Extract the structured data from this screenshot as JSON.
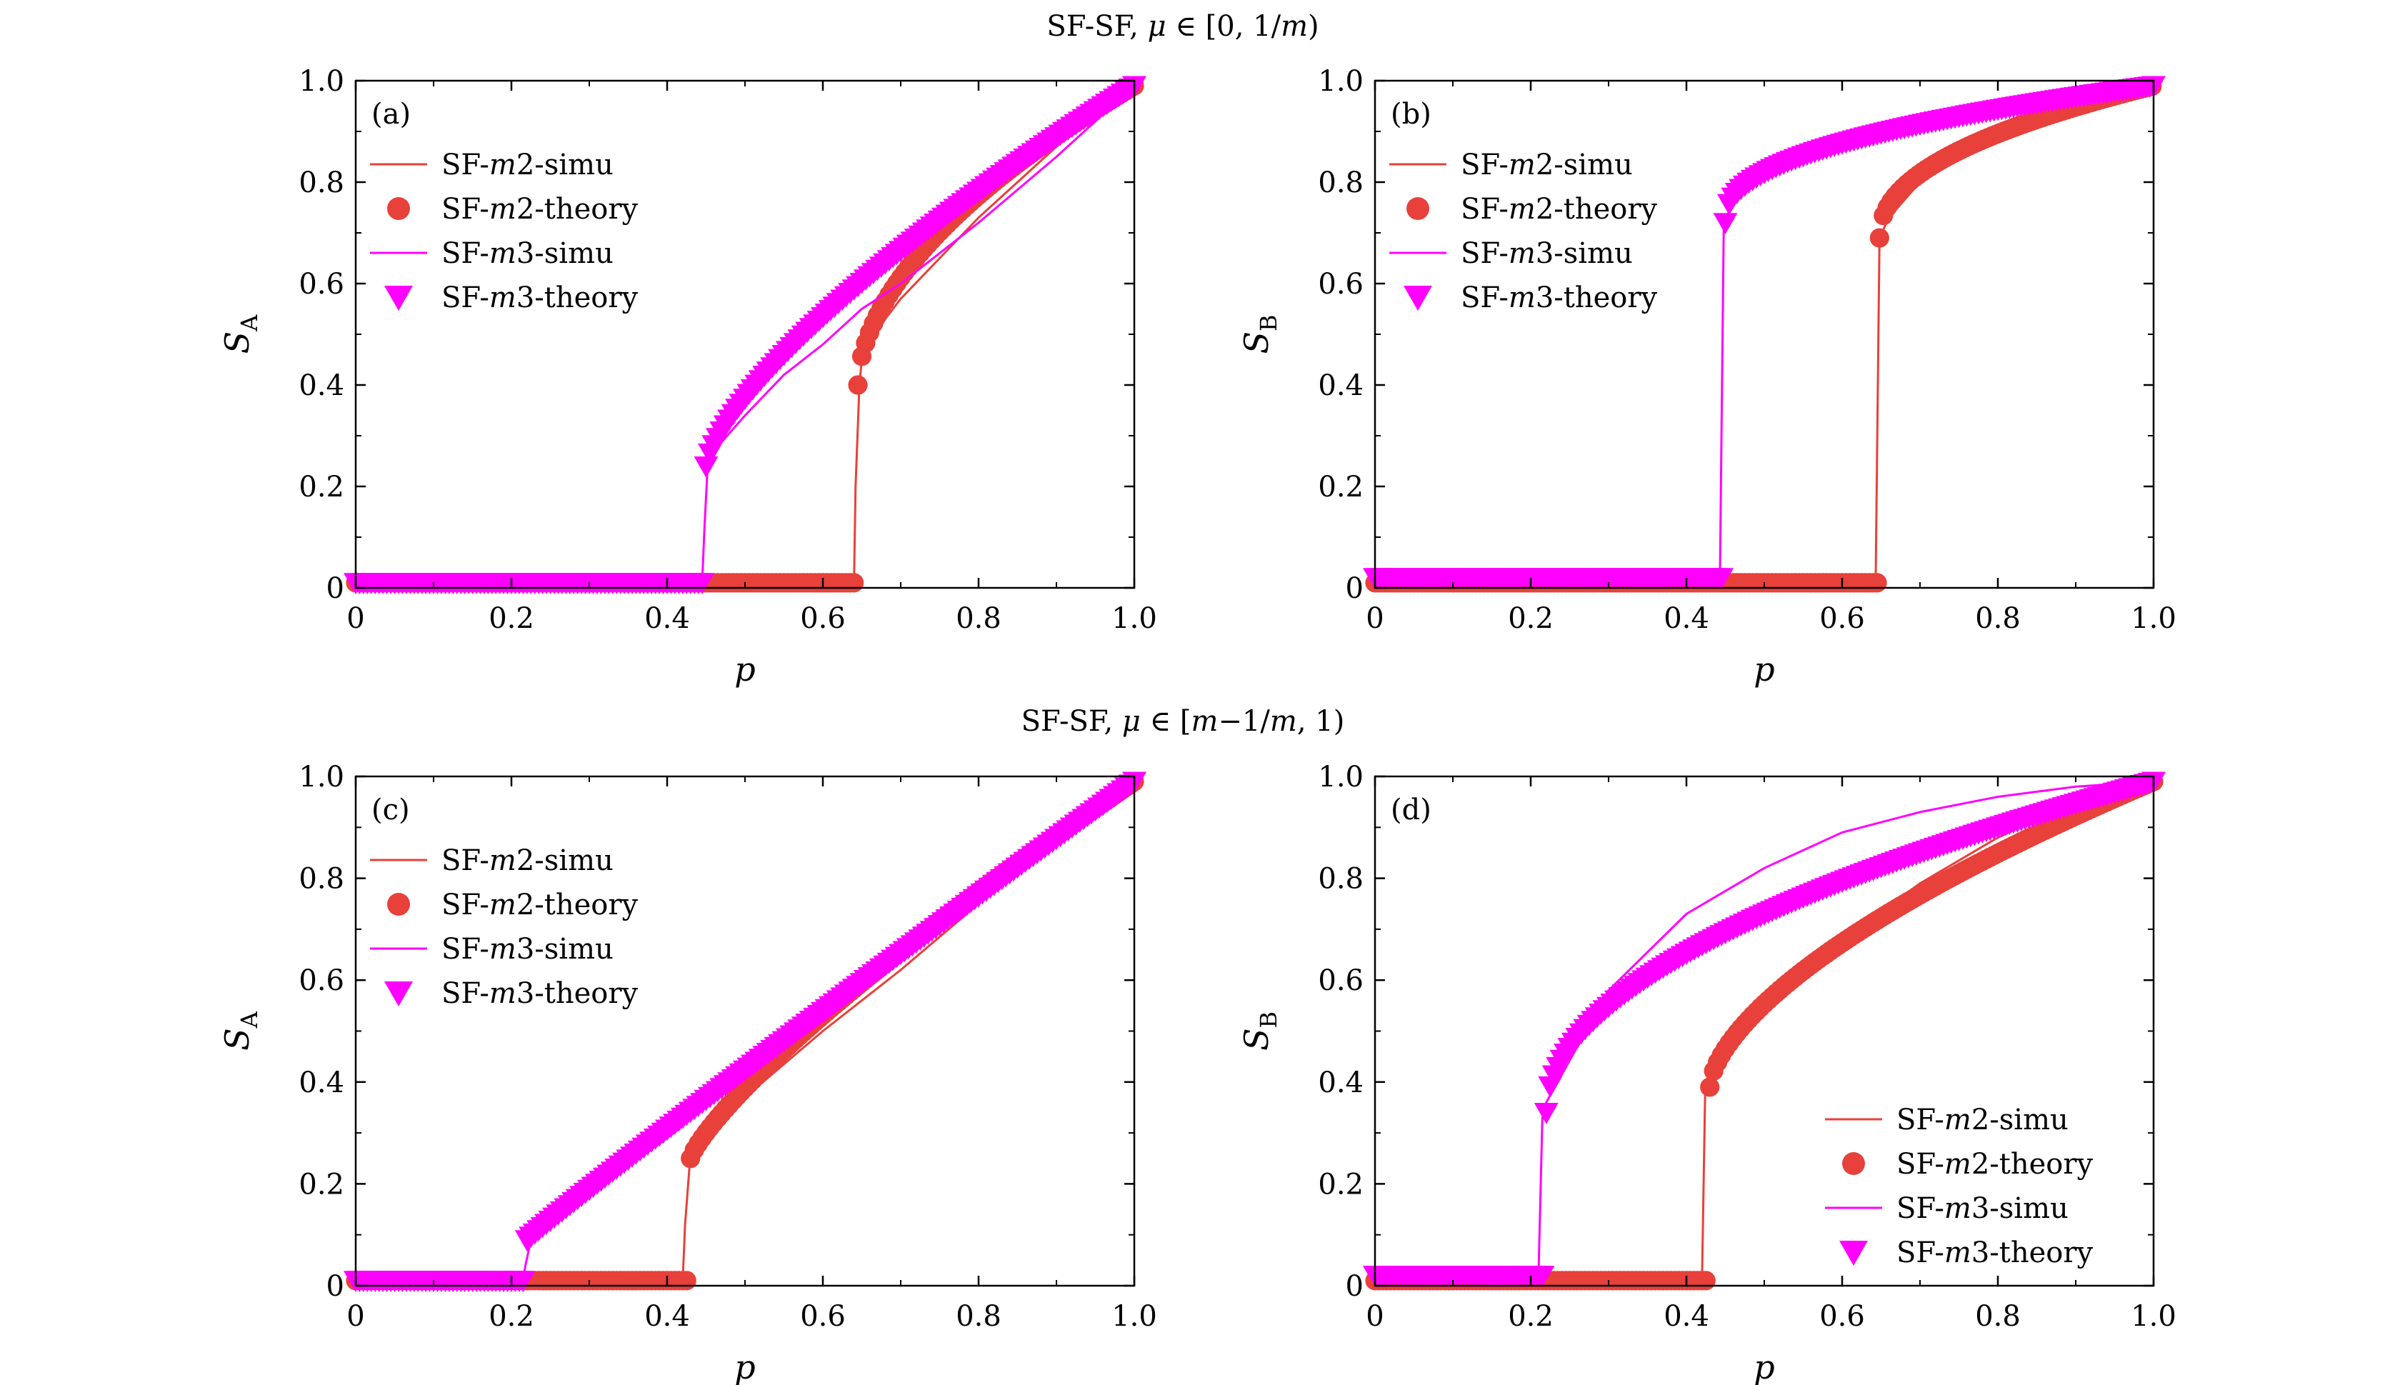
{
  "row_titles": [
    {
      "prefix": "SF-SF, ",
      "mu": "μ",
      "rest": " ∈ [0, 1/",
      "m": "m",
      "close": ")"
    },
    {
      "prefix": "SF-SF, ",
      "mu": "μ",
      "rest": " ∈ [",
      "m": "m",
      "mid": "−1/",
      "m2": "m",
      "close": ", 1)"
    }
  ],
  "colors": {
    "m2": "#e8403a",
    "m3": "#ff00ff"
  },
  "legend_labels": [
    {
      "pre": "SF-",
      "m": "m",
      "post": "2-simu"
    },
    {
      "pre": "SF-",
      "m": "m",
      "post": "2-theory"
    },
    {
      "pre": "SF-",
      "m": "m",
      "post": "3-simu"
    },
    {
      "pre": "SF-",
      "m": "m",
      "post": "3-theory"
    }
  ],
  "chart_data": [
    {
      "panel": "(a)",
      "type": "line",
      "xlabel": "p",
      "ylabel": "S",
      "ylabel_sub": "A",
      "xlim": [
        0,
        1
      ],
      "ylim": [
        0,
        1
      ],
      "xticks": [
        "0",
        "0.2",
        "0.4",
        "0.6",
        "0.8",
        "1.0"
      ],
      "yticks": [
        "0",
        "0.2",
        "0.4",
        "0.6",
        "0.8",
        "1.0"
      ],
      "legend_position": "top-left",
      "series": [
        {
          "name": "SF-m2-simu",
          "kind": "line",
          "color": "#e8403a",
          "x": [
            0,
            0.64,
            0.642,
            0.647,
            0.65,
            0.66,
            0.68,
            0.7,
            0.75,
            0.8,
            0.85,
            0.9,
            0.95,
            1.0
          ],
          "y": [
            0.01,
            0.01,
            0.2,
            0.4,
            0.45,
            0.48,
            0.53,
            0.57,
            0.65,
            0.73,
            0.8,
            0.87,
            0.93,
            0.99
          ]
        },
        {
          "name": "SF-m2-theory",
          "kind": "markers",
          "marker": "circle",
          "color": "#e8403a",
          "transition": 0.645,
          "low": 0.01,
          "start": 0.4,
          "exponent": 0.55
        },
        {
          "name": "SF-m3-simu",
          "kind": "line",
          "color": "#ff00ff",
          "x": [
            0,
            0.445,
            0.448,
            0.452,
            0.46,
            0.5,
            0.55,
            0.6,
            0.65,
            0.7,
            0.8,
            0.9,
            1.0
          ],
          "y": [
            0.01,
            0.01,
            0.12,
            0.24,
            0.27,
            0.34,
            0.42,
            0.48,
            0.55,
            0.6,
            0.72,
            0.85,
            0.99
          ]
        },
        {
          "name": "SF-m3-theory",
          "kind": "markers",
          "marker": "triangle-down",
          "color": "#ff00ff",
          "transition": 0.45,
          "low": 0.01,
          "start": 0.24,
          "exponent": 0.72
        }
      ]
    },
    {
      "panel": "(b)",
      "type": "line",
      "xlabel": "p",
      "ylabel": "S",
      "ylabel_sub": "B",
      "xlim": [
        0,
        1
      ],
      "ylim": [
        0,
        1
      ],
      "xticks": [
        "0",
        "0.2",
        "0.4",
        "0.6",
        "0.8",
        "1.0"
      ],
      "yticks": [
        "0",
        "0.2",
        "0.4",
        "0.6",
        "0.8",
        "1.0"
      ],
      "legend_position": "top-left",
      "series": [
        {
          "name": "SF-m2-simu",
          "kind": "line",
          "color": "#e8403a",
          "x": [
            0,
            0.643,
            0.648,
            0.66,
            0.7,
            0.75,
            0.8,
            0.9,
            1.0
          ],
          "y": [
            0.01,
            0.01,
            0.69,
            0.73,
            0.8,
            0.86,
            0.91,
            0.96,
            0.99
          ]
        },
        {
          "name": "SF-m2-theory",
          "kind": "markers",
          "marker": "circle",
          "color": "#e8403a",
          "transition": 0.648,
          "low": 0.01,
          "start": 0.69,
          "exponent": 0.45
        },
        {
          "name": "SF-m3-simu",
          "kind": "line",
          "color": "#ff00ff",
          "x": [
            0,
            0.443,
            0.448,
            0.46,
            0.5,
            0.6,
            0.7,
            0.8,
            0.9,
            1.0
          ],
          "y": [
            0.02,
            0.02,
            0.72,
            0.76,
            0.82,
            0.89,
            0.93,
            0.96,
            0.98,
            0.99
          ]
        },
        {
          "name": "SF-m3-theory",
          "kind": "markers",
          "marker": "triangle-down",
          "color": "#ff00ff",
          "transition": 0.45,
          "low": 0.02,
          "start": 0.72,
          "exponent": 0.42
        }
      ]
    },
    {
      "panel": "(c)",
      "type": "line",
      "xlabel": "p",
      "ylabel": "S",
      "ylabel_sub": "A",
      "xlim": [
        0,
        1
      ],
      "ylim": [
        0,
        1
      ],
      "xticks": [
        "0",
        "0.2",
        "0.4",
        "0.6",
        "0.8",
        "1.0"
      ],
      "yticks": [
        "0",
        "0.2",
        "0.4",
        "0.6",
        "0.8",
        "1.0"
      ],
      "legend_position": "top-left",
      "series": [
        {
          "name": "SF-m2-simu",
          "kind": "line",
          "color": "#e8403a",
          "x": [
            0,
            0.42,
            0.423,
            0.43,
            0.45,
            0.5,
            0.6,
            0.7,
            0.8,
            0.9,
            1.0
          ],
          "y": [
            0.01,
            0.01,
            0.12,
            0.26,
            0.3,
            0.37,
            0.5,
            0.62,
            0.75,
            0.87,
            0.99
          ]
        },
        {
          "name": "SF-m2-theory",
          "kind": "markers",
          "marker": "circle",
          "color": "#e8403a",
          "transition": 0.43,
          "low": 0.01,
          "start": 0.25,
          "exponent": 0.8
        },
        {
          "name": "SF-m3-simu",
          "kind": "line",
          "color": "#ff00ff",
          "x": [
            0,
            0.215,
            0.218,
            0.225,
            0.3,
            0.4,
            0.5,
            0.6,
            0.7,
            0.8,
            0.9,
            1.0
          ],
          "y": [
            0.01,
            0.01,
            0.04,
            0.09,
            0.18,
            0.29,
            0.41,
            0.52,
            0.64,
            0.76,
            0.88,
            0.99
          ]
        },
        {
          "name": "SF-m3-theory",
          "kind": "markers",
          "marker": "triangle-down",
          "color": "#ff00ff",
          "transition": 0.22,
          "low": 0.01,
          "start": 0.09,
          "exponent": 0.97
        }
      ]
    },
    {
      "panel": "(d)",
      "type": "line",
      "xlabel": "p",
      "ylabel": "S",
      "ylabel_sub": "B",
      "xlim": [
        0,
        1
      ],
      "ylim": [
        0,
        1
      ],
      "xticks": [
        "0",
        "0.2",
        "0.4",
        "0.6",
        "0.8",
        "1.0"
      ],
      "yticks": [
        "0",
        "0.2",
        "0.4",
        "0.6",
        "0.8",
        "1.0"
      ],
      "legend_position": "bottom-right",
      "series": [
        {
          "name": "SF-m2-simu",
          "kind": "line",
          "color": "#e8403a",
          "x": [
            0,
            0.42,
            0.424,
            0.43,
            0.5,
            0.6,
            0.7,
            0.8,
            0.9,
            1.0
          ],
          "y": [
            0.01,
            0.01,
            0.38,
            0.42,
            0.55,
            0.68,
            0.79,
            0.88,
            0.95,
            0.99
          ]
        },
        {
          "name": "SF-m2-theory",
          "kind": "markers",
          "marker": "circle",
          "color": "#e8403a",
          "transition": 0.43,
          "low": 0.01,
          "start": 0.39,
          "exponent": 0.62
        },
        {
          "name": "SF-m3-simu",
          "kind": "line",
          "color": "#ff00ff",
          "x": [
            0,
            0.21,
            0.215,
            0.22,
            0.3,
            0.4,
            0.5,
            0.6,
            0.7,
            0.8,
            0.9,
            1.0
          ],
          "y": [
            0.02,
            0.02,
            0.33,
            0.36,
            0.58,
            0.73,
            0.82,
            0.89,
            0.93,
            0.96,
            0.98,
            0.99
          ]
        },
        {
          "name": "SF-m3-theory",
          "kind": "markers",
          "marker": "triangle-down",
          "color": "#ff00ff",
          "transition": 0.22,
          "low": 0.02,
          "start": 0.34,
          "exponent": 0.5
        }
      ]
    }
  ]
}
